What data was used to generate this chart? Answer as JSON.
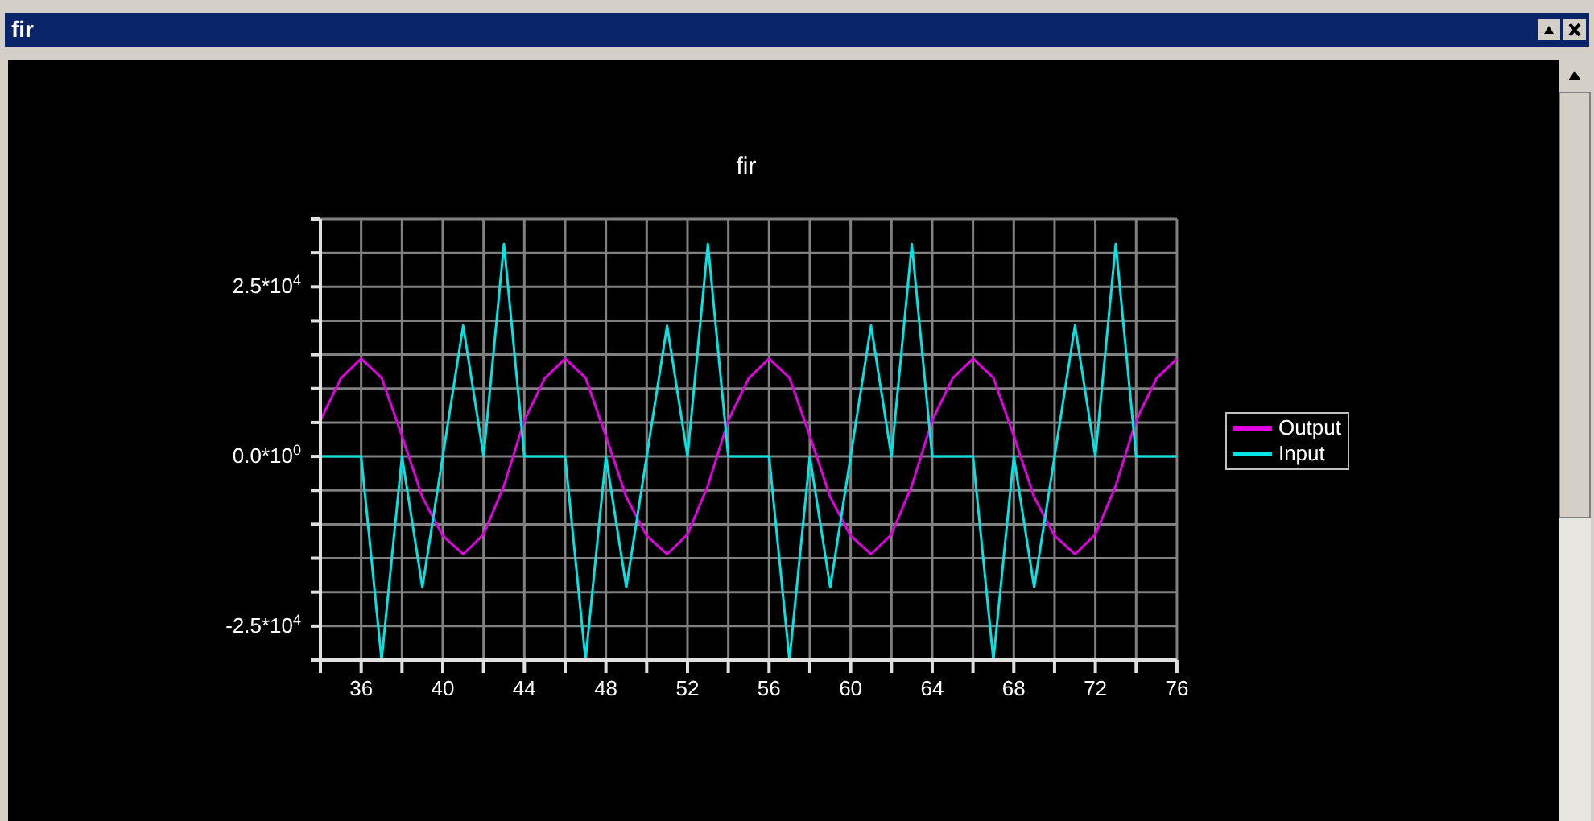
{
  "chart_data": {
    "type": "line",
    "title": "fir",
    "annotations": [
      "fir"
    ],
    "x": [
      34,
      35,
      36,
      37,
      38,
      39,
      40,
      41,
      42,
      43,
      44,
      45,
      46,
      47,
      48,
      49,
      50,
      51,
      52,
      53,
      54,
      55,
      56,
      57,
      58,
      59,
      60,
      61,
      62,
      63,
      64,
      65,
      66,
      67,
      68,
      69,
      70,
      71,
      72,
      73,
      74,
      75,
      76
    ],
    "series": [
      {
        "name": "Output",
        "color": "#e000e0",
        "values": [
          5300,
          11500,
          14400,
          11600,
          3000,
          -6000,
          -11700,
          -14400,
          -11500,
          -4300,
          5300,
          11500,
          14400,
          11600,
          3000,
          -6000,
          -11700,
          -14400,
          -11500,
          -4300,
          5300,
          11500,
          14400,
          11600,
          3000,
          -6000,
          -11700,
          -14400,
          -11500,
          -4300,
          5300,
          11500,
          14400,
          11600,
          3000,
          -6000,
          -11700,
          -14400,
          -11500,
          -4300,
          5300,
          11500,
          14400
        ]
      },
      {
        "name": "Input",
        "color": "#00e5e5",
        "values": [
          0,
          0,
          0,
          -30000,
          0,
          -19300,
          0,
          19300,
          0,
          31300,
          0,
          0,
          0,
          -30000,
          0,
          -19300,
          0,
          19300,
          0,
          31300,
          0,
          0,
          0,
          -30000,
          0,
          -19300,
          0,
          19300,
          0,
          31300,
          0,
          0,
          0,
          -30000,
          0,
          -19300,
          0,
          19300,
          0,
          31300,
          0,
          0,
          0
        ]
      }
    ],
    "xlim": [
      34,
      76
    ],
    "xticks": [
      {
        "value": 34,
        "label": null
      },
      36,
      {
        "value": 38,
        "label": null
      },
      40,
      {
        "value": 42,
        "label": null
      },
      44,
      {
        "value": 46,
        "label": null
      },
      48,
      {
        "value": 50,
        "label": null
      },
      52,
      {
        "value": 54,
        "label": null
      },
      56,
      {
        "value": 58,
        "label": null
      },
      60,
      {
        "value": 62,
        "label": null
      },
      64,
      {
        "value": 66,
        "label": null
      },
      68,
      {
        "value": 70,
        "label": null
      },
      72,
      {
        "value": 74,
        "label": null
      },
      76
    ],
    "ylim": [
      -30000,
      35000
    ],
    "yticks": [
      {
        "value": -30000,
        "label": null
      },
      {
        "value": -25000,
        "label": "-2.5*10$^{4}$"
      },
      {
        "value": -20000,
        "label": null
      },
      {
        "value": -15000,
        "label": null
      },
      {
        "value": -10000,
        "label": null
      },
      {
        "value": -5000,
        "label": null
      },
      {
        "value": 0,
        "label": "0.0*10$^{0}$"
      },
      {
        "value": 5000,
        "label": null
      },
      {
        "value": 10000,
        "label": null
      },
      {
        "value": 15000,
        "label": null
      },
      {
        "value": 20000,
        "label": null
      },
      {
        "value": 25000,
        "label": "2.5*10$^{4}$"
      },
      {
        "value": 30000,
        "label": null
      },
      {
        "value": 35000,
        "label": null
      }
    ],
    "grid": true,
    "legend": "right",
    "marker": "none",
    "line_style": "solid"
  }
}
